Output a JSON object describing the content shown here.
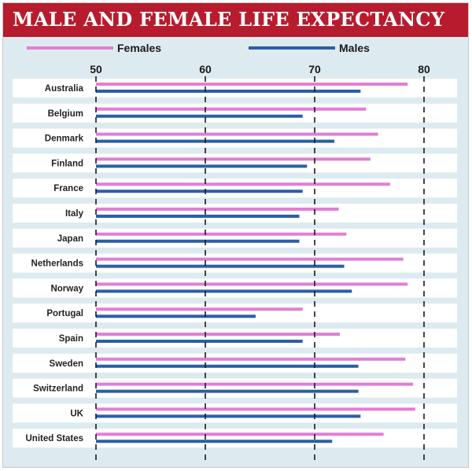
{
  "title": "MALE AND FEMALE LIFE EXPECTANCY",
  "colors": {
    "title_background": "#b71c2e",
    "panel_background": "#ddebf0",
    "row_background": "#ffffff",
    "females": "#e07fd6",
    "males": "#2b5fa6"
  },
  "chart_data": {
    "type": "bar",
    "orientation": "horizontal",
    "title": "MALE AND FEMALE LIFE EXPECTANCY",
    "xlabel": "",
    "ylabel": "",
    "xlim": [
      50,
      80
    ],
    "xticks": [
      50,
      60,
      70,
      80
    ],
    "grid": "dashed vertical lines at ticks",
    "legend_position": "top",
    "categories": [
      "Australia",
      "Belgium",
      "Denmark",
      "Finland",
      "France",
      "Italy",
      "Japan",
      "Netherlands",
      "Norway",
      "Portugal",
      "Spain",
      "Sweden",
      "Switzerland",
      "UK",
      "United States"
    ],
    "series": [
      {
        "name": "Females",
        "color": "#e07fd6",
        "values": [
          78.5,
          74.7,
          75.8,
          75.1,
          76.9,
          72.2,
          72.9,
          78.1,
          78.5,
          68.9,
          72.3,
          78.3,
          79.0,
          79.2,
          76.3
        ]
      },
      {
        "name": "Males",
        "color": "#2b5fa6",
        "values": [
          74.2,
          68.9,
          71.8,
          69.3,
          68.9,
          68.6,
          68.6,
          72.7,
          73.4,
          64.6,
          68.9,
          74.0,
          74.0,
          74.2,
          71.6
        ]
      }
    ]
  }
}
